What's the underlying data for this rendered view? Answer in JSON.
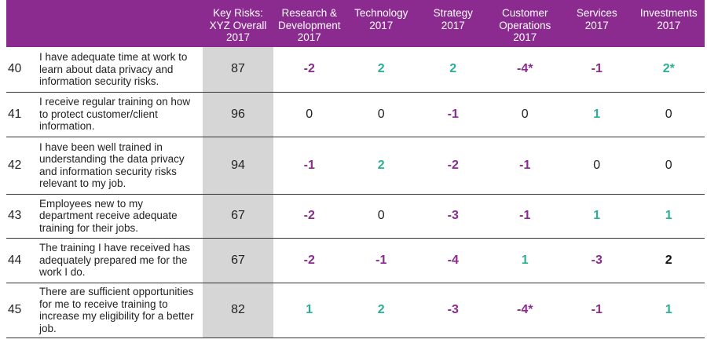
{
  "chart_data": {
    "type": "table",
    "colors": {
      "header_bg": "#8b2a8f",
      "key_col_bg": "#d6d6d6",
      "negative": "#8b2a8f",
      "positive": "#2aaf97",
      "neutral": "#222222",
      "emphasis": "#111111"
    },
    "columns": [
      "Key Risks:\nXYZ Overall\n2017",
      "Research &\nDevelopment\n2017",
      "Technology\n2017",
      "Strategy\n2017",
      "Customer\nOperations\n2017",
      "Services\n2017",
      "Investments\n2017"
    ],
    "rows": [
      {
        "num": "40",
        "question": "I have adequate time at work to learn about data privacy and information security risks.",
        "key": "87",
        "values": [
          {
            "text": "-2",
            "tone": "neg"
          },
          {
            "text": "2",
            "tone": "pos"
          },
          {
            "text": "2",
            "tone": "pos"
          },
          {
            "text": "-4*",
            "tone": "neg"
          },
          {
            "text": "-1",
            "tone": "neg"
          },
          {
            "text": "2*",
            "tone": "pos"
          }
        ]
      },
      {
        "num": "41",
        "question": "I receive regular training on how to protect customer/client information.",
        "key": "96",
        "values": [
          {
            "text": "0",
            "tone": "zero"
          },
          {
            "text": "0",
            "tone": "zero"
          },
          {
            "text": "-1",
            "tone": "neg"
          },
          {
            "text": "0",
            "tone": "zero"
          },
          {
            "text": "1",
            "tone": "pos"
          },
          {
            "text": "0",
            "tone": "zero"
          }
        ]
      },
      {
        "num": "42",
        "question": "I have been well trained in understanding the data privacy and information security risks relevant to my job.",
        "key": "94",
        "values": [
          {
            "text": "-1",
            "tone": "neg"
          },
          {
            "text": "2",
            "tone": "pos"
          },
          {
            "text": "-2",
            "tone": "neg"
          },
          {
            "text": "-1",
            "tone": "neg"
          },
          {
            "text": "0",
            "tone": "zero"
          },
          {
            "text": "0",
            "tone": "zero"
          }
        ]
      },
      {
        "num": "43",
        "question": "Employees new to my department receive adequate training for their jobs.",
        "key": "67",
        "values": [
          {
            "text": "-2",
            "tone": "neg"
          },
          {
            "text": "0",
            "tone": "zero"
          },
          {
            "text": "-3",
            "tone": "neg"
          },
          {
            "text": "-1",
            "tone": "neg"
          },
          {
            "text": "1",
            "tone": "pos"
          },
          {
            "text": "1",
            "tone": "pos"
          }
        ]
      },
      {
        "num": "44",
        "question": "The training I have received has adequately prepared me for the work I do.",
        "key": "67",
        "values": [
          {
            "text": "-2",
            "tone": "neg"
          },
          {
            "text": "-1",
            "tone": "neg"
          },
          {
            "text": "-4",
            "tone": "neg"
          },
          {
            "text": "1",
            "tone": "pos"
          },
          {
            "text": "-3",
            "tone": "neg"
          },
          {
            "text": "2",
            "tone": "hi"
          }
        ]
      },
      {
        "num": "45",
        "question": "There are sufficient opportunities for me to receive training to increase my eligibility for a better job.",
        "key": "82",
        "values": [
          {
            "text": "1",
            "tone": "pos"
          },
          {
            "text": "2",
            "tone": "pos"
          },
          {
            "text": "-3",
            "tone": "neg"
          },
          {
            "text": "-4*",
            "tone": "neg"
          },
          {
            "text": "-1",
            "tone": "neg"
          },
          {
            "text": "1",
            "tone": "pos"
          }
        ]
      }
    ]
  }
}
